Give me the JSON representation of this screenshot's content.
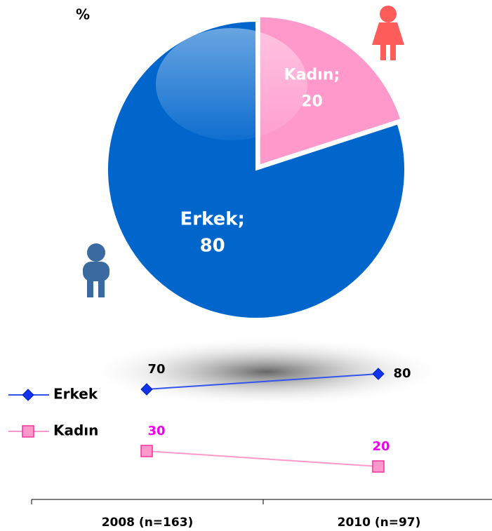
{
  "chart_data": [
    {
      "type": "pie",
      "title": "%",
      "categories": [
        "Kadın",
        "Erkek"
      ],
      "labels": [
        "Kadın;",
        "Erkek;"
      ],
      "values": [
        20,
        80
      ],
      "colors": [
        "#ff99cc",
        "#0066cc"
      ]
    },
    {
      "type": "line",
      "categories": [
        "2008 (n=163)",
        "2010 (n=97)"
      ],
      "ylim": [
        0,
        100
      ],
      "series": [
        {
          "name": "Erkek",
          "color": "#3355ee",
          "marker": "diamond",
          "label_color": "#000000",
          "values": [
            70,
            80
          ]
        },
        {
          "name": "Kadın",
          "color": "#ff99cc",
          "marker": "square",
          "label_color": "#ee00ee",
          "values": [
            30,
            20
          ]
        }
      ]
    }
  ]
}
